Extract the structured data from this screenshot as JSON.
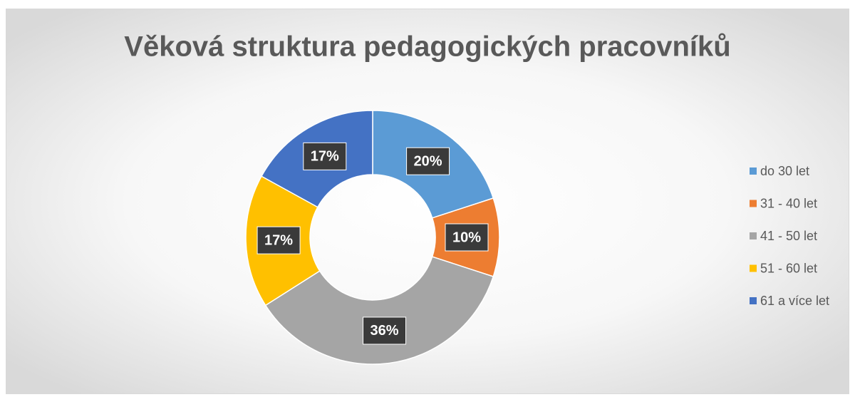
{
  "chart_data": {
    "type": "donut",
    "title": "Věková struktura pedagogických pracovníků",
    "categories": [
      "do 30 let",
      "31 - 40 let",
      "41 - 50 let",
      "51 - 60 let",
      "61 a více let"
    ],
    "values": [
      20,
      10,
      36,
      17,
      17
    ],
    "value_labels": [
      "20%",
      "10%",
      "36%",
      "17%",
      "17%"
    ],
    "colors": [
      "#5b9bd5",
      "#ed7d31",
      "#a5a5a5",
      "#ffc000",
      "#4472c4"
    ],
    "legend": "right"
  }
}
